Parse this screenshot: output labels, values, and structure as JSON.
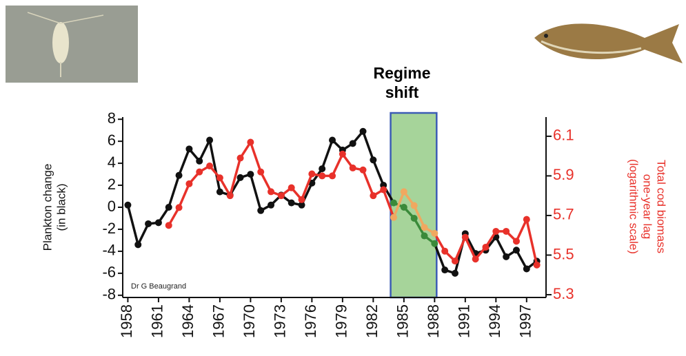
{
  "chart_data": {
    "type": "line",
    "title": "Regime shift",
    "ylabel": [
      "Plankton change",
      "(in black)"
    ],
    "y2label": [
      "Total cod biomass",
      "one-year lag",
      "(logarithmic scale)"
    ],
    "annotation": "Dr G Beaugrand",
    "x": [
      1958,
      1959,
      1960,
      1961,
      1962,
      1963,
      1964,
      1965,
      1966,
      1967,
      1968,
      1969,
      1970,
      1971,
      1972,
      1973,
      1974,
      1975,
      1976,
      1977,
      1978,
      1979,
      1980,
      1981,
      1982,
      1983,
      1984,
      1985,
      1986,
      1987,
      1988,
      1989,
      1990,
      1991,
      1992,
      1993,
      1994,
      1995,
      1996,
      1997,
      1998
    ],
    "series": [
      {
        "color": "#111111",
        "values": [
          0.2,
          -3.4,
          -1.5,
          -1.4,
          0,
          2.9,
          5.3,
          4.2,
          6.1,
          1.4,
          1.1,
          2.7,
          3.0,
          -0.3,
          0.2,
          1.1,
          0.4,
          0.2,
          2.2,
          3.5,
          6.1,
          5.2,
          5.8,
          6.9,
          4.3,
          2.0,
          0.4,
          0,
          -1,
          -2.6,
          -3.3,
          -5.7,
          -6.0,
          -2.4,
          -4.2,
          -3.9,
          -2.7,
          -4.5,
          -3.9,
          -5.6,
          -4.9
        ]
      },
      {
        "color": "#e8312a",
        "axis": "y2",
        "values": [
          null,
          null,
          null,
          null,
          5.65,
          5.74,
          5.86,
          5.92,
          5.95,
          5.89,
          5.8,
          5.99,
          6.07,
          5.92,
          5.82,
          5.8,
          5.84,
          5.78,
          5.91,
          5.9,
          5.9,
          6.01,
          5.94,
          5.93,
          5.8,
          5.83,
          5.69,
          5.82,
          5.75,
          5.64,
          5.61,
          5.52,
          5.47,
          5.59,
          5.48,
          5.54,
          5.62,
          5.62,
          5.57,
          5.68,
          5.45
        ]
      }
    ],
    "regime": {
      "start": 1983.7,
      "end": 1988.2,
      "fill": "#a6d49a",
      "stroke": "#3b5bb5",
      "colors": [
        "#3a8a3a",
        "#f0a860"
      ]
    },
    "xlim": [
      1957.5,
      1998.9
    ],
    "xticks": [
      1958,
      1961,
      1964,
      1967,
      1970,
      1973,
      1976,
      1979,
      1982,
      1985,
      1988,
      1991,
      1994,
      1997
    ],
    "ylim": [
      -8.2,
      8.2
    ],
    "yticks": [
      8,
      6,
      4,
      2,
      0,
      -2,
      -4,
      -6,
      -8
    ],
    "y2lim": [
      5.286,
      6.197
    ],
    "y2ticks": [
      6.1,
      5.9,
      5.7,
      5.5,
      5.3
    ],
    "y2color": "#e8312a"
  }
}
